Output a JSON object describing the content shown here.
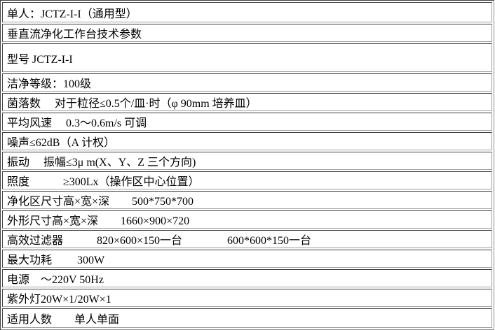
{
  "table": {
    "description": "垂直流净化工作台技术参数表",
    "rows": [
      "单人：JCTZ-I-I（通用型）",
      "垂直流净化工作台技术参数",
      "型号 JCTZ-I-I",
      "洁净等级：100级",
      "菌落数　 对于粒径≤0.5个/皿·时（φ 90mm 培养皿）",
      "平均风速　 0.3～0.6m/s 可调",
      "噪声≤62dB（A 计权）",
      "振动　 振幅≤3μ m(X、Y、Z 三个方向)",
      "照度　　　≥300Lx（操作区中心位置）",
      "净化区尺寸高×宽×深　　500*750*700",
      "外形尺寸高×宽×深　　1660×900×720",
      "高效过滤器　　　820×600×150一台　　　　600*600*150一台",
      "最大功耗　　 300W",
      "电源　～220V 50Hz",
      "紫外灯20W×1/20W×1",
      "适用人数　　单人单面"
    ]
  },
  "colors": {
    "text": "#000000",
    "background": "#ffffff",
    "border_dark": "#3f3f3f",
    "border_light": "#9f9f9f"
  }
}
